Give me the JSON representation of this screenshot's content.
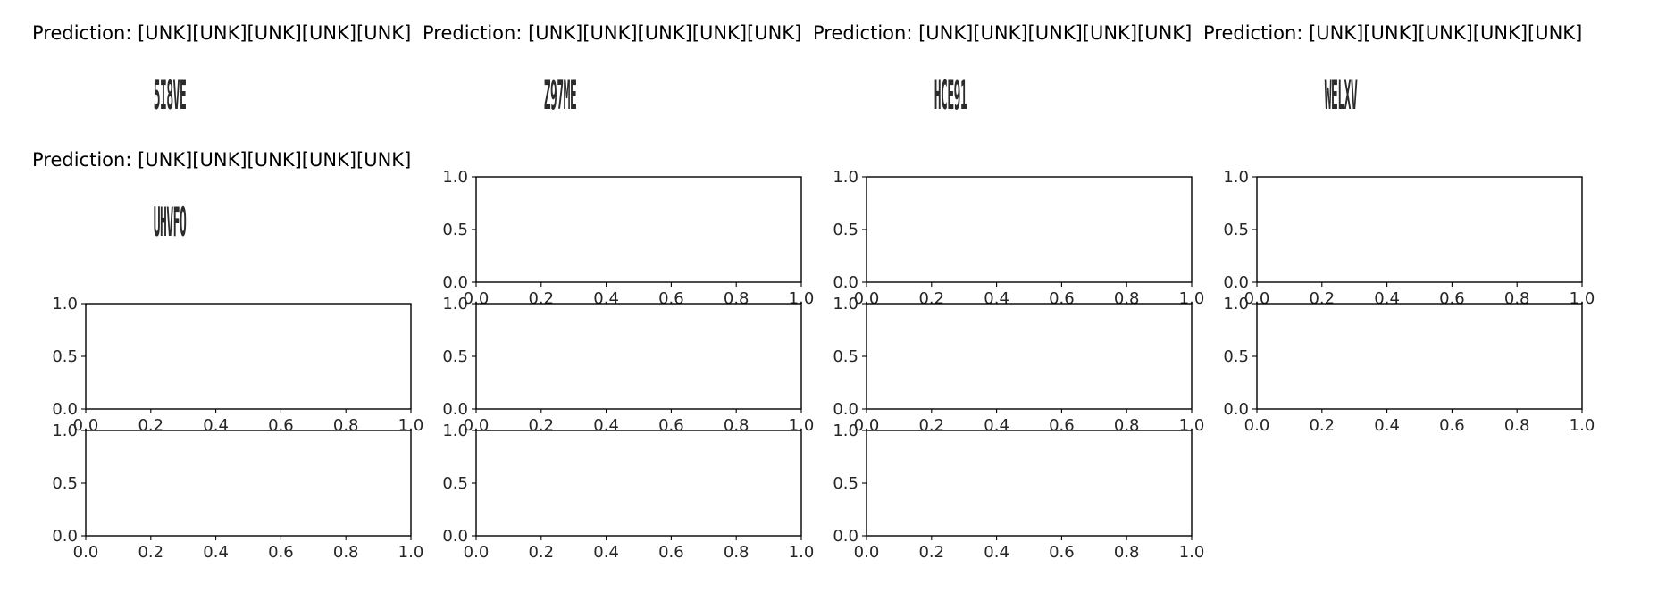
{
  "chart_data": [
    {
      "type": "image",
      "title": "Prediction: [UNK][UNK][UNK][UNK][UNK]",
      "image_text": "5I8VE"
    },
    {
      "type": "image",
      "title": "Prediction: [UNK][UNK][UNK][UNK][UNK]",
      "image_text": "Z97ME"
    },
    {
      "type": "image",
      "title": "Prediction: [UNK][UNK][UNK][UNK][UNK]",
      "image_text": "HCE91"
    },
    {
      "type": "image",
      "title": "Prediction: [UNK][UNK][UNK][UNK][UNK]",
      "image_text": "WELXV"
    },
    {
      "type": "image",
      "title": "Prediction: [UNK][UNK][UNK][UNK][UNK]",
      "image_text": "UHVFO"
    },
    {
      "type": "empty-axes",
      "xlim": [
        0.0,
        1.0
      ],
      "ylim": [
        0.0,
        1.0
      ],
      "xticks": [
        "0.0",
        "0.2",
        "0.4",
        "0.6",
        "0.8",
        "1.0"
      ],
      "yticks": [
        "0.0",
        "0.5",
        "1.0"
      ]
    },
    {
      "type": "empty-axes",
      "xlim": [
        0.0,
        1.0
      ],
      "ylim": [
        0.0,
        1.0
      ],
      "xticks": [
        "0.0",
        "0.2",
        "0.4",
        "0.6",
        "0.8",
        "1.0"
      ],
      "yticks": [
        "0.0",
        "0.5",
        "1.0"
      ]
    },
    {
      "type": "empty-axes",
      "xlim": [
        0.0,
        1.0
      ],
      "ylim": [
        0.0,
        1.0
      ],
      "xticks": [
        "0.0",
        "0.2",
        "0.4",
        "0.6",
        "0.8",
        "1.0"
      ],
      "yticks": [
        "0.0",
        "0.5",
        "1.0"
      ]
    },
    {
      "type": "empty-axes",
      "xlim": [
        0.0,
        1.0
      ],
      "ylim": [
        0.0,
        1.0
      ],
      "xticks": [
        "0.0",
        "0.2",
        "0.4",
        "0.6",
        "0.8",
        "1.0"
      ],
      "yticks": [
        "0.0",
        "0.5",
        "1.0"
      ]
    },
    {
      "type": "empty-axes",
      "xlim": [
        0.0,
        1.0
      ],
      "ylim": [
        0.0,
        1.0
      ],
      "xticks": [
        "0.0",
        "0.2",
        "0.4",
        "0.6",
        "0.8",
        "1.0"
      ],
      "yticks": [
        "0.0",
        "0.5",
        "1.0"
      ]
    },
    {
      "type": "empty-axes",
      "xlim": [
        0.0,
        1.0
      ],
      "ylim": [
        0.0,
        1.0
      ],
      "xticks": [
        "0.0",
        "0.2",
        "0.4",
        "0.6",
        "0.8",
        "1.0"
      ],
      "yticks": [
        "0.0",
        "0.5",
        "1.0"
      ]
    },
    {
      "type": "empty-axes",
      "xlim": [
        0.0,
        1.0
      ],
      "ylim": [
        0.0,
        1.0
      ],
      "xticks": [
        "0.0",
        "0.2",
        "0.4",
        "0.6",
        "0.8",
        "1.0"
      ],
      "yticks": [
        "0.0",
        "0.5",
        "1.0"
      ]
    },
    {
      "type": "empty-axes",
      "xlim": [
        0.0,
        1.0
      ],
      "ylim": [
        0.0,
        1.0
      ],
      "xticks": [
        "0.0",
        "0.2",
        "0.4",
        "0.6",
        "0.8",
        "1.0"
      ],
      "yticks": [
        "0.0",
        "0.5",
        "1.0"
      ]
    },
    {
      "type": "empty-axes",
      "xlim": [
        0.0,
        1.0
      ],
      "ylim": [
        0.0,
        1.0
      ],
      "xticks": [
        "0.0",
        "0.2",
        "0.4",
        "0.6",
        "0.8",
        "1.0"
      ],
      "yticks": [
        "0.0",
        "0.5",
        "1.0"
      ]
    },
    {
      "type": "empty-axes",
      "xlim": [
        0.0,
        1.0
      ],
      "ylim": [
        0.0,
        1.0
      ],
      "xticks": [
        "0.0",
        "0.2",
        "0.4",
        "0.6",
        "0.8",
        "1.0"
      ],
      "yticks": [
        "0.0",
        "0.5",
        "1.0"
      ]
    }
  ]
}
